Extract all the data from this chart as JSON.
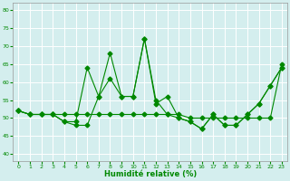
{
  "xlabel": "Humidité relative (%)",
  "bg_color": "#d4eeee",
  "grid_color": "#ffffff",
  "line_color": "#008800",
  "xlim": [
    -0.5,
    23.5
  ],
  "ylim": [
    38,
    82
  ],
  "yticks": [
    40,
    45,
    50,
    55,
    60,
    65,
    70,
    75,
    80
  ],
  "xticks": [
    0,
    1,
    2,
    3,
    4,
    5,
    6,
    7,
    8,
    9,
    10,
    11,
    12,
    13,
    14,
    15,
    16,
    17,
    18,
    19,
    20,
    21,
    22,
    23
  ],
  "series1_x": [
    0,
    1,
    2,
    3,
    4,
    5,
    6,
    7,
    8,
    9,
    10,
    11,
    12,
    13,
    14,
    15,
    16,
    17,
    18,
    19,
    20,
    21,
    22,
    23
  ],
  "series1_y": [
    52,
    51,
    51,
    51,
    49,
    48,
    48,
    56,
    61,
    56,
    56,
    72,
    54,
    56,
    50,
    49,
    47,
    51,
    48,
    48,
    51,
    54,
    59,
    64
  ],
  "series2_x": [
    0,
    1,
    2,
    3,
    4,
    5,
    6,
    7,
    8,
    9,
    10,
    11,
    12,
    13,
    14,
    15,
    16,
    17,
    18,
    19,
    20,
    21,
    22,
    23
  ],
  "series2_y": [
    52,
    51,
    51,
    51,
    51,
    51,
    51,
    51,
    51,
    51,
    51,
    51,
    51,
    51,
    51,
    50,
    50,
    50,
    50,
    50,
    50,
    50,
    50,
    65
  ],
  "series3_x": [
    0,
    1,
    2,
    3,
    4,
    5,
    6,
    7,
    8,
    9,
    10,
    11,
    12,
    13,
    14,
    15,
    16,
    17,
    18,
    19,
    20,
    21,
    22,
    23
  ],
  "series3_y": [
    52,
    51,
    51,
    51,
    49,
    49,
    64,
    56,
    68,
    56,
    56,
    72,
    55,
    51,
    50,
    49,
    47,
    51,
    48,
    48,
    51,
    54,
    59,
    64
  ]
}
